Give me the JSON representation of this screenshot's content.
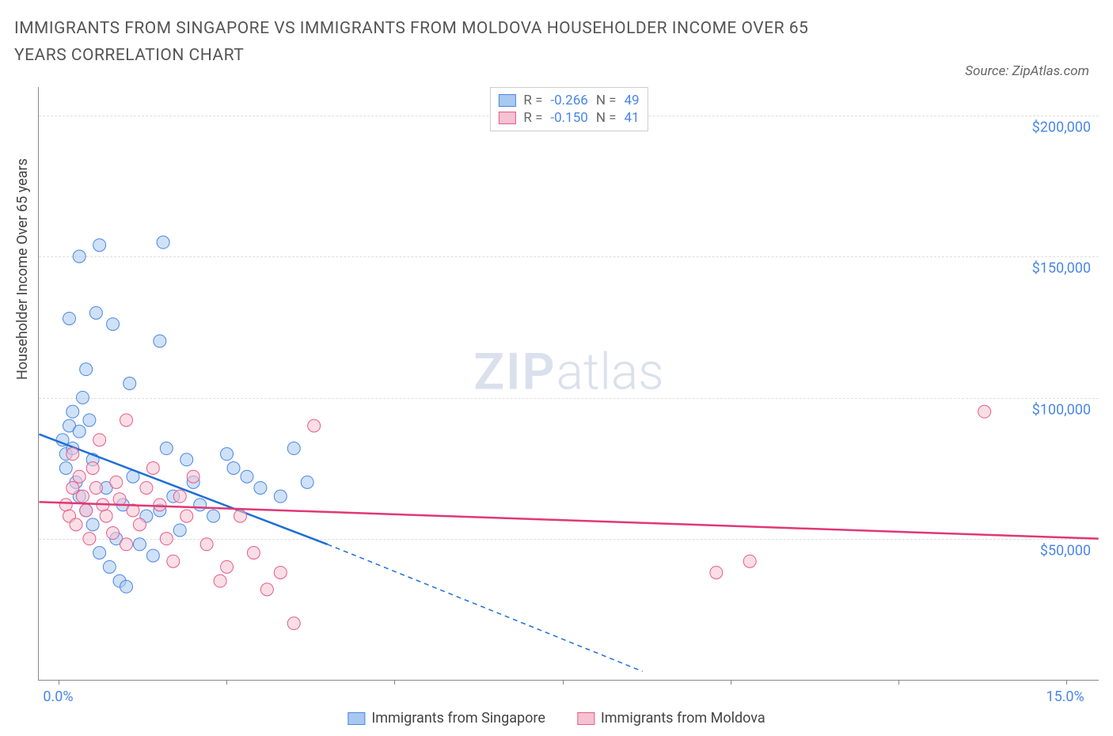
{
  "title": "IMMIGRANTS FROM SINGAPORE VS IMMIGRANTS FROM MOLDOVA HOUSEHOLDER INCOME OVER 65 YEARS CORRELATION CHART",
  "source": "Source: ZipAtlas.com",
  "y_axis_label": "Householder Income Over 65 years",
  "watermark": {
    "zip": "ZIP",
    "atlas": "atlas"
  },
  "chart": {
    "type": "scatter",
    "background_color": "#ffffff",
    "grid_color": "#dddddd",
    "axis_color": "#888888",
    "text_color": "#555555",
    "tick_label_color": "#4a86e8",
    "xlim": [
      -0.3,
      15.5
    ],
    "ylim": [
      0,
      210000
    ],
    "x_ticks": [
      0.0,
      2.5,
      5.0,
      7.5,
      10.0,
      12.5,
      15.0
    ],
    "x_tick_labels": [
      "0.0%",
      "",
      "",
      "",
      "",
      "",
      "15.0%"
    ],
    "y_ticks": [
      50000,
      100000,
      150000,
      200000
    ],
    "y_tick_labels": [
      "$50,000",
      "$100,000",
      "$150,000",
      "$200,000"
    ],
    "marker_radius": 8,
    "marker_opacity": 0.55,
    "line_width": 2.5,
    "title_fontsize": 21,
    "label_fontsize": 18
  },
  "series": [
    {
      "name": "Immigrants from Singapore",
      "color_fill": "#a8c8f0",
      "color_stroke": "#4a86e8",
      "trend_color": "#1f6fd6",
      "R": "-0.266",
      "N": "49",
      "points": [
        [
          0.05,
          85000
        ],
        [
          0.1,
          80000
        ],
        [
          0.1,
          75000
        ],
        [
          0.15,
          90000
        ],
        [
          0.2,
          82000
        ],
        [
          0.2,
          95000
        ],
        [
          0.25,
          70000
        ],
        [
          0.3,
          65000
        ],
        [
          0.3,
          88000
        ],
        [
          0.35,
          100000
        ],
        [
          0.4,
          110000
        ],
        [
          0.4,
          60000
        ],
        [
          0.45,
          92000
        ],
        [
          0.5,
          55000
        ],
        [
          0.5,
          78000
        ],
        [
          0.55,
          130000
        ],
        [
          0.6,
          154000
        ],
        [
          0.6,
          45000
        ],
        [
          0.7,
          68000
        ],
        [
          0.75,
          40000
        ],
        [
          0.8,
          126000
        ],
        [
          0.85,
          50000
        ],
        [
          0.9,
          35000
        ],
        [
          0.95,
          62000
        ],
        [
          1.0,
          33000
        ],
        [
          1.05,
          105000
        ],
        [
          1.1,
          72000
        ],
        [
          1.2,
          48000
        ],
        [
          1.3,
          58000
        ],
        [
          1.4,
          44000
        ],
        [
          1.5,
          120000
        ],
        [
          1.5,
          60000
        ],
        [
          1.55,
          155000
        ],
        [
          1.6,
          82000
        ],
        [
          1.7,
          65000
        ],
        [
          1.8,
          53000
        ],
        [
          1.9,
          78000
        ],
        [
          2.0,
          70000
        ],
        [
          2.1,
          62000
        ],
        [
          2.3,
          58000
        ],
        [
          2.5,
          80000
        ],
        [
          2.6,
          75000
        ],
        [
          2.8,
          72000
        ],
        [
          3.0,
          68000
        ],
        [
          3.3,
          65000
        ],
        [
          3.5,
          82000
        ],
        [
          3.7,
          70000
        ],
        [
          0.3,
          150000
        ],
        [
          0.15,
          128000
        ]
      ],
      "trend_solid": {
        "x1": -0.3,
        "y1": 87000,
        "x2": 4.0,
        "y2": 48000
      },
      "trend_dashed": {
        "x1": 4.0,
        "y1": 48000,
        "x2": 8.7,
        "y2": 3000
      }
    },
    {
      "name": "Immigrants from Moldova",
      "color_fill": "#f5c2d1",
      "color_stroke": "#e85a8a",
      "trend_color": "#e03874",
      "R": "-0.150",
      "N": "41",
      "points": [
        [
          0.1,
          62000
        ],
        [
          0.15,
          58000
        ],
        [
          0.2,
          68000
        ],
        [
          0.25,
          55000
        ],
        [
          0.3,
          72000
        ],
        [
          0.35,
          65000
        ],
        [
          0.4,
          60000
        ],
        [
          0.45,
          50000
        ],
        [
          0.5,
          75000
        ],
        [
          0.55,
          68000
        ],
        [
          0.6,
          85000
        ],
        [
          0.65,
          62000
        ],
        [
          0.7,
          58000
        ],
        [
          0.8,
          52000
        ],
        [
          0.85,
          70000
        ],
        [
          0.9,
          64000
        ],
        [
          1.0,
          92000
        ],
        [
          1.0,
          48000
        ],
        [
          1.1,
          60000
        ],
        [
          1.2,
          55000
        ],
        [
          1.3,
          68000
        ],
        [
          1.4,
          75000
        ],
        [
          1.5,
          62000
        ],
        [
          1.6,
          50000
        ],
        [
          1.7,
          42000
        ],
        [
          1.8,
          65000
        ],
        [
          1.9,
          58000
        ],
        [
          2.0,
          72000
        ],
        [
          2.2,
          48000
        ],
        [
          2.4,
          35000
        ],
        [
          2.5,
          40000
        ],
        [
          2.7,
          58000
        ],
        [
          2.9,
          45000
        ],
        [
          3.1,
          32000
        ],
        [
          3.3,
          38000
        ],
        [
          3.5,
          20000
        ],
        [
          3.8,
          90000
        ],
        [
          9.8,
          38000
        ],
        [
          10.3,
          42000
        ],
        [
          13.8,
          95000
        ],
        [
          0.2,
          80000
        ]
      ],
      "trend_solid": {
        "x1": -0.3,
        "y1": 63000,
        "x2": 15.5,
        "y2": 50000
      }
    }
  ],
  "legend_top": {
    "r_label": "R =",
    "n_label": "N ="
  },
  "legend_bottom": [
    {
      "label": "Immigrants from Singapore",
      "fill": "#a8c8f0",
      "stroke": "#4a86e8"
    },
    {
      "label": "Immigrants from Moldova",
      "fill": "#f5c2d1",
      "stroke": "#e85a8a"
    }
  ]
}
